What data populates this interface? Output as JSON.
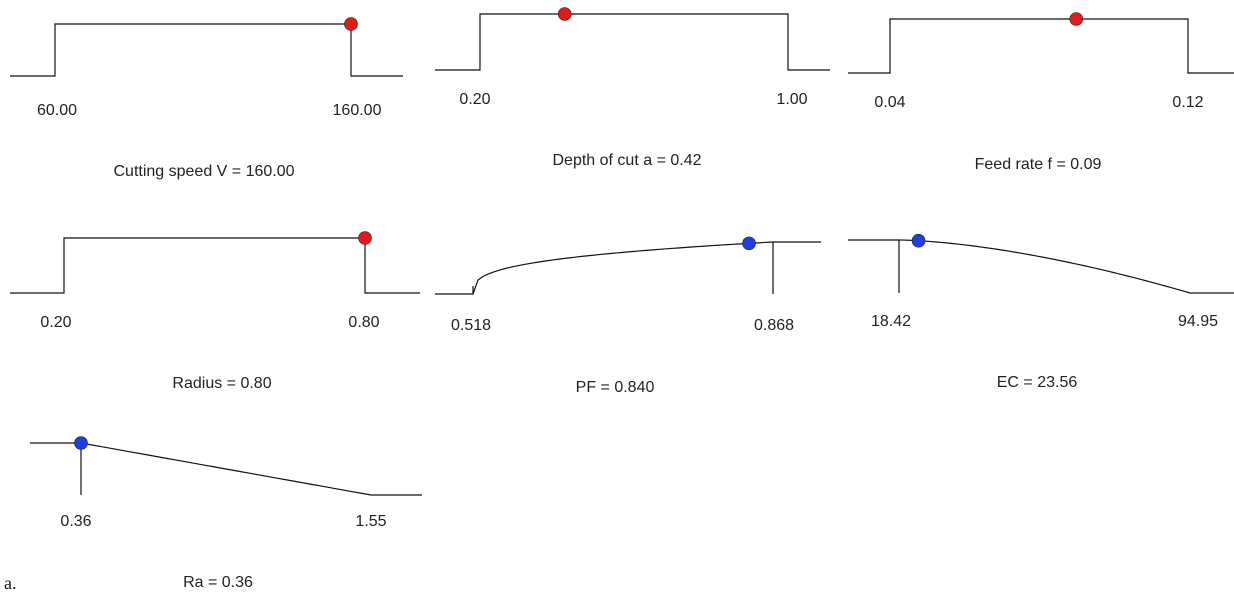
{
  "figure_label": "a.",
  "chart_data": [
    {
      "type": "desirability-ramp",
      "shape": "window",
      "title": "Cutting speed V  = 160.00",
      "range": [
        60.0,
        160.0
      ],
      "tick_labels": [
        "60.00",
        "160.00"
      ],
      "marker_value": 160.0,
      "marker_color": "#e31a1c"
    },
    {
      "type": "desirability-ramp",
      "shape": "window",
      "title": "Depth of cut a = 0.42",
      "range": [
        0.2,
        1.0
      ],
      "tick_labels": [
        "0.20",
        "1.00"
      ],
      "marker_value": 0.42,
      "marker_color": "#e31a1c"
    },
    {
      "type": "desirability-ramp",
      "shape": "window",
      "title": "Feed rate f = 0.09",
      "range": [
        0.04,
        0.12
      ],
      "tick_labels": [
        "0.04",
        "0.12"
      ],
      "marker_value": 0.09,
      "marker_color": "#e31a1c"
    },
    {
      "type": "desirability-ramp",
      "shape": "window",
      "title": "Radius = 0.80",
      "range": [
        0.2,
        0.8
      ],
      "tick_labels": [
        "0.20",
        "0.80"
      ],
      "marker_value": 0.8,
      "marker_color": "#e31a1c"
    },
    {
      "type": "desirability-ramp",
      "shape": "maximize",
      "title": "PF = 0.840",
      "range": [
        0.518,
        0.868
      ],
      "tick_labels": [
        "0.518",
        "0.868"
      ],
      "marker_value": 0.84,
      "marker_color": "#1f3fe0"
    },
    {
      "type": "desirability-ramp",
      "shape": "minimize",
      "title": "EC = 23.56",
      "range": [
        18.42,
        94.95
      ],
      "tick_labels": [
        "18.42",
        "94.95"
      ],
      "marker_value": 23.56,
      "marker_color": "#1f3fe0"
    },
    {
      "type": "desirability-ramp",
      "shape": "minimize-linear",
      "title": "Ra = 0.36",
      "range": [
        0.36,
        1.55
      ],
      "tick_labels": [
        "0.36",
        "1.55"
      ],
      "marker_value": 0.36,
      "marker_color": "#1f3fe0"
    }
  ]
}
